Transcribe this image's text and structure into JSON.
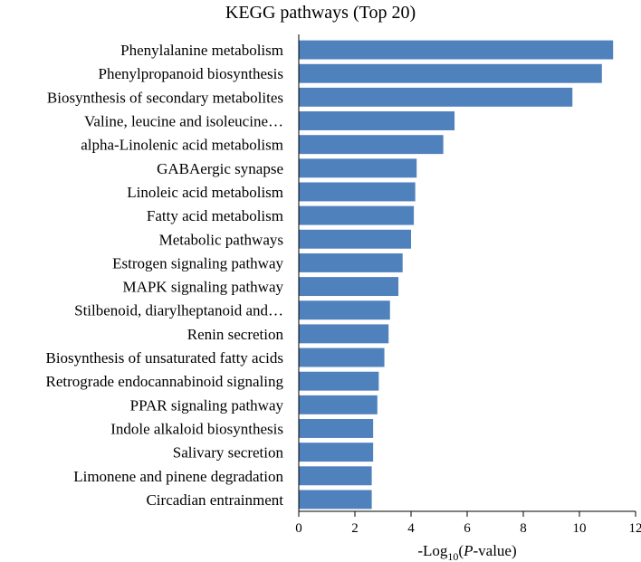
{
  "chart_data": {
    "type": "bar",
    "orientation": "horizontal",
    "title": "KEGG pathways (Top 20)",
    "xlabel": {
      "prefix": "-Log",
      "subscript": "10",
      "open": "(",
      "italic": "P",
      "rest": "-value)"
    },
    "ylabel": "",
    "xlim": [
      0,
      12
    ],
    "xticks": [
      0,
      2,
      4,
      6,
      8,
      10,
      12
    ],
    "grid": false,
    "legend": "none",
    "bar_color": "#4f81bd",
    "categories": [
      "Phenylalanine metabolism",
      "Phenylpropanoid biosynthesis",
      "Biosynthesis of secondary metabolites",
      "Valine, leucine and isoleucine…",
      "alpha-Linolenic acid metabolism",
      "GABAergic synapse",
      "Linoleic acid metabolism",
      "Fatty acid metabolism",
      "Metabolic pathways",
      "Estrogen signaling pathway",
      "MAPK signaling pathway",
      "Stilbenoid, diarylheptanoid and…",
      "Renin secretion",
      "Biosynthesis of unsaturated fatty acids",
      "Retrograde endocannabinoid signaling",
      "PPAR signaling pathway",
      "Indole alkaloid biosynthesis",
      "Salivary secretion",
      "Limonene and pinene degradation",
      "Circadian entrainment"
    ],
    "values": [
      11.2,
      10.8,
      9.75,
      5.55,
      5.15,
      4.2,
      4.15,
      4.1,
      4.0,
      3.7,
      3.55,
      3.25,
      3.2,
      3.05,
      2.85,
      2.8,
      2.65,
      2.65,
      2.6,
      2.6
    ]
  }
}
